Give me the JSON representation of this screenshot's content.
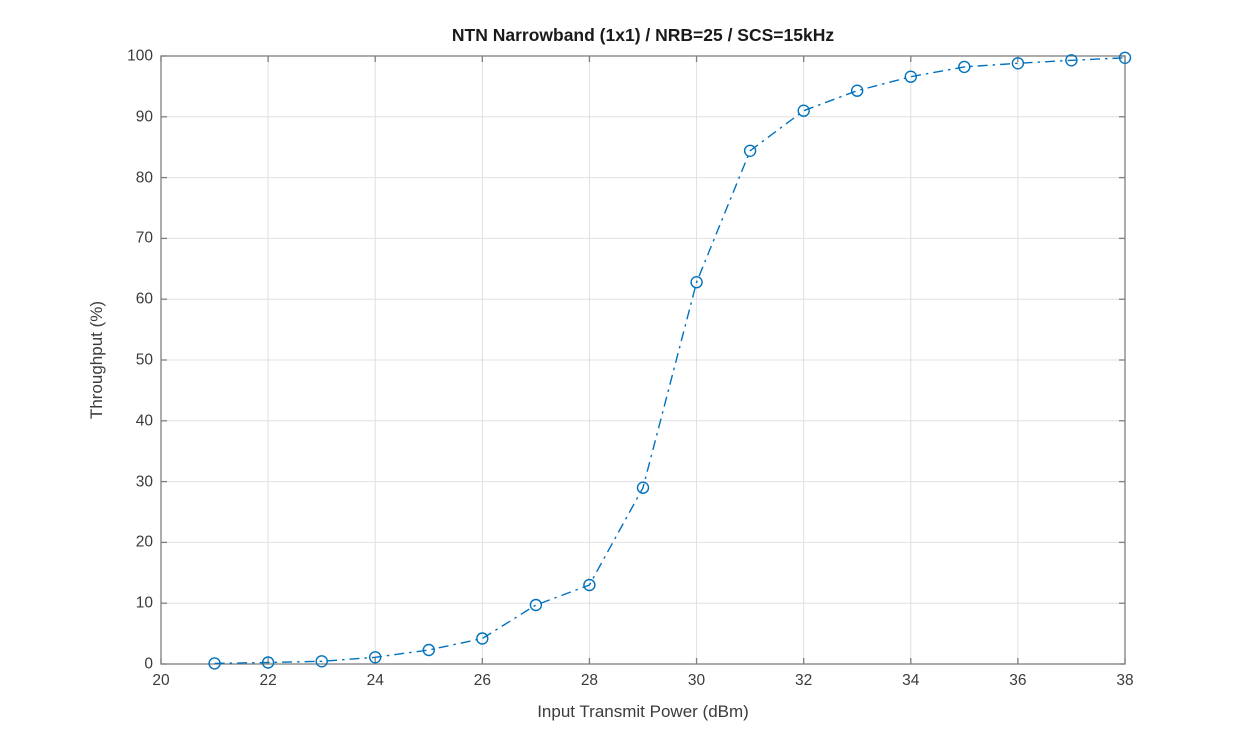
{
  "figure": {
    "background": "#ffffff"
  },
  "chart_data": {
    "type": "line",
    "title": "NTN Narrowband (1x1) / NRB=25 / SCS=15kHz",
    "xlabel": "Input Transmit Power (dBm)",
    "ylabel": "Throughput (%)",
    "xlim": [
      20,
      38
    ],
    "ylim": [
      0,
      100
    ],
    "xticks": [
      20,
      22,
      24,
      26,
      28,
      30,
      32,
      34,
      36,
      38
    ],
    "yticks": [
      0,
      10,
      20,
      30,
      40,
      50,
      60,
      70,
      80,
      90,
      100
    ],
    "grid": true,
    "legend": "none",
    "series": [
      {
        "name": "Throughput",
        "color": "#0072BD",
        "line_style": "dash-dot",
        "marker": "circle",
        "marker_filled": false,
        "x": [
          21,
          22,
          23,
          24,
          25,
          26,
          27,
          28,
          29,
          30,
          31,
          32,
          33,
          34,
          35,
          36,
          37,
          38
        ],
        "y": [
          0.1,
          0.25,
          0.45,
          1.1,
          2.3,
          4.2,
          9.7,
          13.0,
          29.0,
          62.8,
          84.4,
          91.0,
          94.3,
          96.6,
          98.2,
          98.8,
          99.3,
          99.7
        ]
      }
    ],
    "colors": {
      "axis_box": "#7f7f7f",
      "grid_line": "#e0e0e0",
      "tick_label": "#3b3b3b",
      "axis_label": "#3b3b3b",
      "title": "#1a1a1a"
    }
  }
}
